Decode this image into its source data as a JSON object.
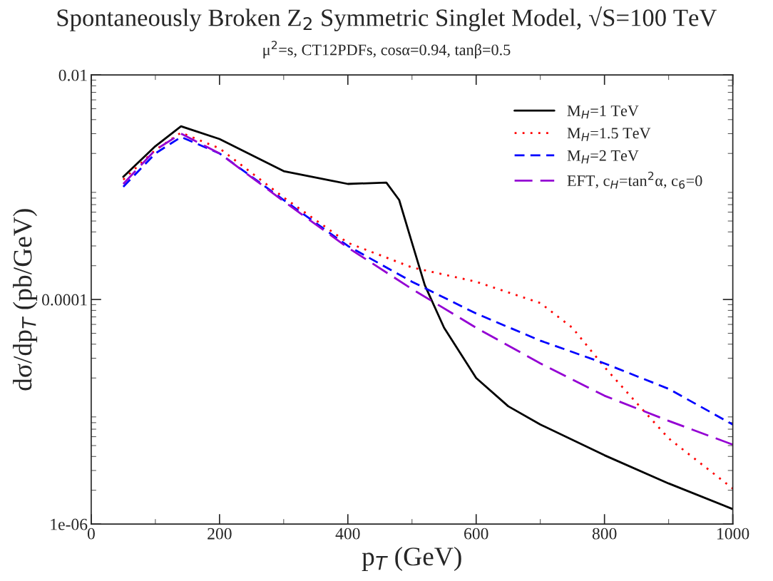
{
  "chart_data": {
    "type": "line",
    "title": "Spontaneously Broken Z$_{2}$ Symmetric Singlet Model, √S=100 TeV",
    "subtitle": "μ$^{2}$=s, CT12PDFs, cosα=0.94, tanβ=0.5",
    "xlabel": "p$_{T}$ (GeV)",
    "ylabel": "dσ/dp$_{T}$ (pb/GeV)",
    "log": "y",
    "xlim": [
      0,
      1000
    ],
    "xticks": [
      0,
      200,
      400,
      600,
      800,
      1000
    ],
    "ylim": [
      1e-06,
      0.01
    ],
    "yticks": [
      {
        "value": 1e-06,
        "label": "1e-06"
      },
      {
        "value": 0.0001,
        "label": "0.0001"
      },
      {
        "value": 0.01,
        "label": "0.01"
      }
    ],
    "grid": false,
    "legend": "top right",
    "marker": "none",
    "series": [
      {
        "name": "M$_{H}$=1 TeV",
        "color": "#000000",
        "line_style": "solid",
        "x": [
          50,
          100,
          140,
          200,
          300,
          400,
          460,
          480,
          500,
          520,
          550,
          600,
          650,
          700,
          800,
          900,
          1000
        ],
        "values": [
          0.00124,
          0.00232,
          0.00349,
          0.00269,
          0.00139,
          0.00107,
          0.0011,
          0.00077,
          0.00032,
          0.000134,
          5.6e-05,
          2e-05,
          1.12e-05,
          7.7e-06,
          4.1e-06,
          2.3e-06,
          1.36e-06
        ]
      },
      {
        "name": "M$_{H}$=1.5 TeV",
        "color": "#ff0000",
        "line_style": "dotted",
        "x": [
          50,
          100,
          140,
          200,
          300,
          400,
          500,
          600,
          700,
          750,
          800,
          850,
          900,
          1000
        ],
        "values": [
          0.00117,
          0.00215,
          0.00306,
          0.00222,
          0.00081,
          0.00032,
          0.000193,
          0.000144,
          9.3e-05,
          5.6e-05,
          2.5e-05,
          1.2e-05,
          5.8e-06,
          2.07e-06
        ]
      },
      {
        "name": "M$_{H}$=2 TeV",
        "color": "#0000ff",
        "line_style": "dashed",
        "x": [
          50,
          100,
          140,
          200,
          300,
          400,
          500,
          600,
          700,
          800,
          900,
          1000
        ],
        "values": [
          0.00101,
          0.002,
          0.0028,
          0.002,
          0.00077,
          0.0003,
          0.000144,
          7.5e-05,
          4.3e-05,
          2.7e-05,
          1.6e-05,
          7.7e-06
        ]
      },
      {
        "name": "EFT, c$_{H}$=tan$^{2}$α, c$_{6}$=0",
        "color": "#9400d3",
        "line_style": "dashed",
        "x": [
          50,
          100,
          140,
          200,
          300,
          400,
          500,
          600,
          700,
          800,
          900,
          1000
        ],
        "values": [
          0.00107,
          0.00215,
          0.003,
          0.002,
          0.00075,
          0.00029,
          0.000124,
          5.6e-05,
          2.7e-05,
          1.39e-05,
          8.3e-06,
          5.1e-06
        ]
      }
    ]
  }
}
